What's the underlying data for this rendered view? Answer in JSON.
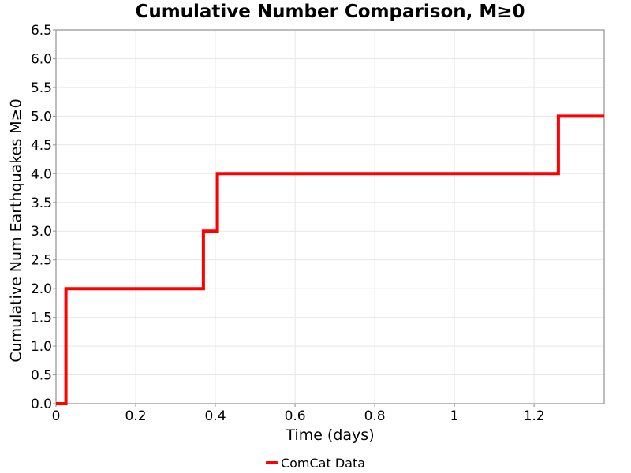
{
  "chart_data": {
    "type": "line",
    "variant": "step",
    "title": "Cumulative Number Comparison, M≥0",
    "xlabel": "Time (days)",
    "ylabel": "Cumulative Num Earthquakes M≥0",
    "xlim": [
      0,
      1.376
    ],
    "ylim": [
      0,
      6.5
    ],
    "grid": true,
    "legend_position": "bottom-center",
    "xticks": {
      "values": [
        0,
        0.2,
        0.4,
        0.6,
        0.8,
        1,
        1.2
      ],
      "labels": [
        "0",
        "0.2",
        "0.4",
        "0.6",
        "0.8",
        "1",
        "1.2"
      ]
    },
    "yticks": {
      "values": [
        0,
        0.5,
        1.0,
        1.5,
        2.0,
        2.5,
        3.0,
        3.5,
        4.0,
        4.5,
        5.0,
        5.5,
        6.0,
        6.5
      ],
      "labels": [
        "0.0",
        "0.5",
        "1.0",
        "1.5",
        "2.0",
        "2.5",
        "3.0",
        "3.5",
        "4.0",
        "4.5",
        "5.0",
        "5.5",
        "6.0",
        "6.5"
      ]
    },
    "series": [
      {
        "name": "ComCat Data",
        "color": "#ff0000",
        "line_width": 4,
        "steps": [
          [
            0,
            0
          ],
          [
            0.025,
            2
          ],
          [
            0.37,
            3
          ],
          [
            0.405,
            4
          ],
          [
            1.261,
            5
          ]
        ],
        "end_t": 1.376
      }
    ],
    "colors": {
      "line": "#ff0000",
      "grid": "#e7e7e7",
      "spine": "#a0a0a0",
      "text": "#000000",
      "background": "#ffffff"
    }
  }
}
